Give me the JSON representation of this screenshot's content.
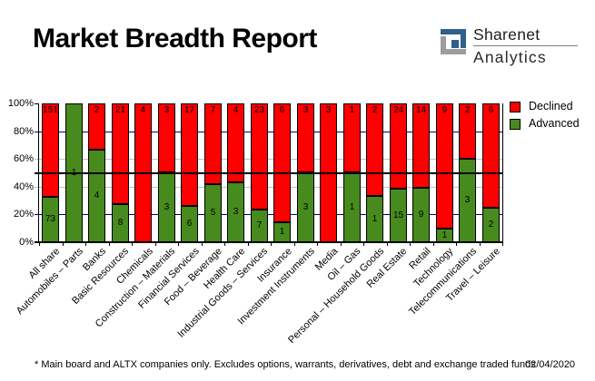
{
  "title": "Market Breadth Report",
  "logo": {
    "line1": "Sharenet",
    "line2": "Analytics",
    "icon_blue": "#2e608c",
    "icon_gray": "#9b9d9f"
  },
  "legend": {
    "declined_label": "Declined",
    "advanced_label": "Advanced"
  },
  "footer": {
    "note": "* Main board and ALTX companies only. Excludes options, warrants, derivatives, debt and exchange traded funds",
    "date": "02/04/2020"
  },
  "colors": {
    "declined": "#ff0000",
    "advanced": "#478a1d",
    "grid_major": "#000080",
    "grid_minor": "#c0c0c0",
    "reference_line": "#000000",
    "axis": "#000000"
  },
  "chart_data": {
    "type": "bar",
    "subtype": "100pct-stacked-column",
    "title": "Market Breadth Report",
    "categories": [
      "All share",
      "Automobiles – Parts",
      "Banks",
      "Basic Resources",
      "Chemicals",
      "Construction – Materials",
      "Financial Services",
      "Food – Beverage",
      "Health Care",
      "Industrial Goods – Services",
      "Insurance",
      "Investment Instruments",
      "Media",
      "Oil – Gas",
      "Personal – Household Goods",
      "Real Estate",
      "Retail",
      "Technology",
      "Telecommunications",
      "Travel – Leisure"
    ],
    "series": [
      {
        "name": "Declined",
        "color": "#ff0000",
        "values": [
          151,
          0,
          2,
          21,
          4,
          3,
          17,
          7,
          4,
          23,
          6,
          3,
          3,
          1,
          2,
          24,
          14,
          9,
          2,
          6
        ]
      },
      {
        "name": "Advanced",
        "color": "#478a1d",
        "values": [
          73,
          1,
          4,
          8,
          0,
          3,
          6,
          5,
          3,
          7,
          1,
          3,
          0,
          1,
          1,
          15,
          9,
          1,
          3,
          2
        ]
      }
    ],
    "y_axis": {
      "min": 0,
      "max": 100,
      "unit": "%",
      "ticks": [
        "0%",
        "20%",
        "40%",
        "60%",
        "80%",
        "100%"
      ]
    },
    "gridlines": {
      "major_levels": [
        20,
        80
      ],
      "minor_levels": [
        40,
        60
      ],
      "major_color": "#000080",
      "minor_color": "#c0c0c0"
    },
    "reference_line_pct": 50,
    "legend_position": "top-right",
    "value_labels": "declined labels at top of bar, advanced labels centered in green segment"
  }
}
